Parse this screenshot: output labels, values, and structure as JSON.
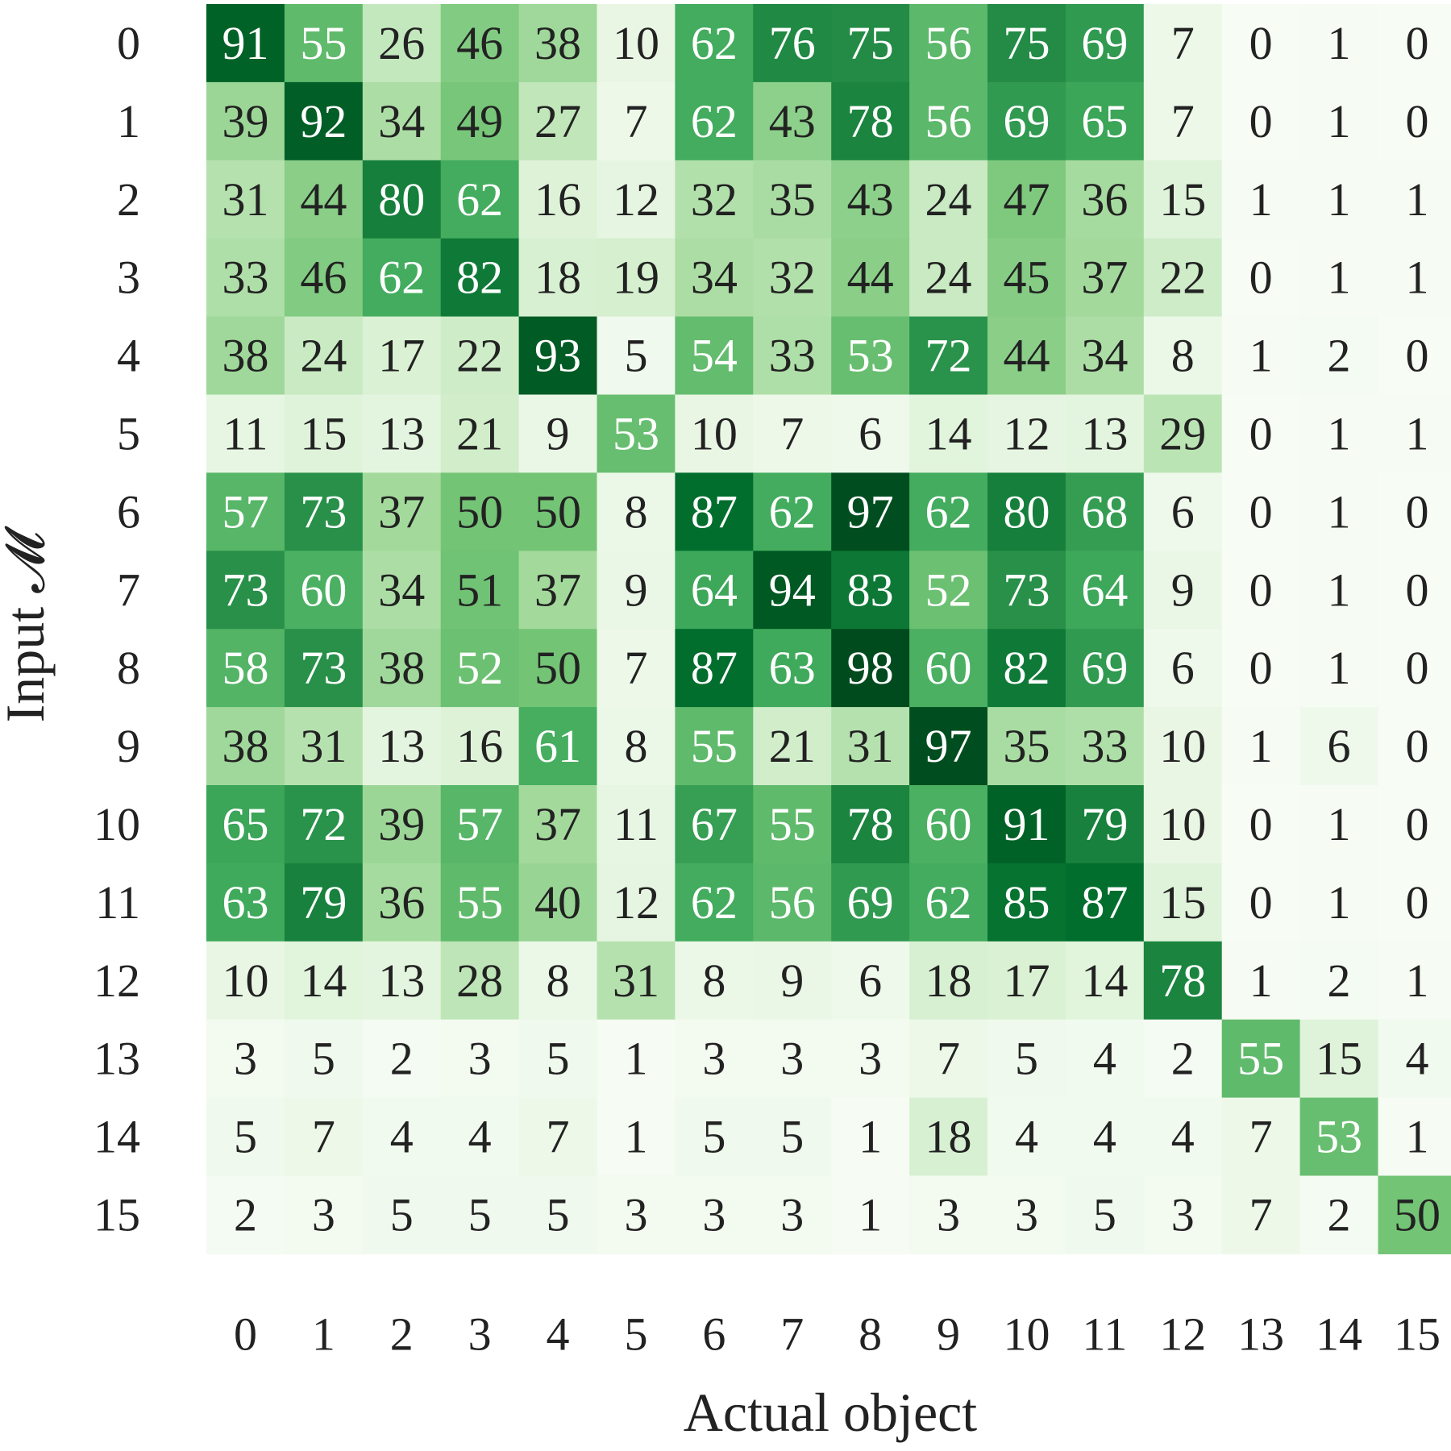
{
  "chart_data": {
    "type": "heatmap",
    "title": "",
    "xlabel": "Actual object",
    "ylabel": "Input 𝓜",
    "x_ticks": [
      "0",
      "1",
      "2",
      "3",
      "4",
      "5",
      "6",
      "7",
      "8",
      "9",
      "10",
      "11",
      "12",
      "13",
      "14",
      "15"
    ],
    "y_ticks": [
      "0",
      "1",
      "2",
      "3",
      "4",
      "5",
      "6",
      "7",
      "8",
      "9",
      "10",
      "11",
      "12",
      "13",
      "14",
      "15"
    ],
    "value_range": [
      0,
      100
    ],
    "colormap": "Greens",
    "colors": {
      "low": "#f7fcf5",
      "high": "#00441b",
      "text_dark": "#222222",
      "text_light": "#ffffff"
    },
    "grid": false,
    "values": [
      [
        91,
        55,
        26,
        46,
        38,
        10,
        62,
        76,
        75,
        56,
        75,
        69,
        7,
        0,
        1,
        0
      ],
      [
        39,
        92,
        34,
        49,
        27,
        7,
        62,
        43,
        78,
        56,
        69,
        65,
        7,
        0,
        1,
        0
      ],
      [
        31,
        44,
        80,
        62,
        16,
        12,
        32,
        35,
        43,
        24,
        47,
        36,
        15,
        1,
        1,
        1
      ],
      [
        33,
        46,
        62,
        82,
        18,
        19,
        34,
        32,
        44,
        24,
        45,
        37,
        22,
        0,
        1,
        1
      ],
      [
        38,
        24,
        17,
        22,
        93,
        5,
        54,
        33,
        53,
        72,
        44,
        34,
        8,
        1,
        2,
        0
      ],
      [
        11,
        15,
        13,
        21,
        9,
        53,
        10,
        7,
        6,
        14,
        12,
        13,
        29,
        0,
        1,
        1
      ],
      [
        57,
        73,
        37,
        50,
        50,
        8,
        87,
        62,
        97,
        62,
        80,
        68,
        6,
        0,
        1,
        0
      ],
      [
        73,
        60,
        34,
        51,
        37,
        9,
        64,
        94,
        83,
        52,
        73,
        64,
        9,
        0,
        1,
        0
      ],
      [
        58,
        73,
        38,
        52,
        50,
        7,
        87,
        63,
        98,
        60,
        82,
        69,
        6,
        0,
        1,
        0
      ],
      [
        38,
        31,
        13,
        16,
        61,
        8,
        55,
        21,
        31,
        97,
        35,
        33,
        10,
        1,
        6,
        0
      ],
      [
        65,
        72,
        39,
        57,
        37,
        11,
        67,
        55,
        78,
        60,
        91,
        79,
        10,
        0,
        1,
        0
      ],
      [
        63,
        79,
        36,
        55,
        40,
        12,
        62,
        56,
        69,
        62,
        85,
        87,
        15,
        0,
        1,
        0
      ],
      [
        10,
        14,
        13,
        28,
        8,
        31,
        8,
        9,
        6,
        18,
        17,
        14,
        78,
        1,
        2,
        1
      ],
      [
        3,
        5,
        2,
        3,
        5,
        1,
        3,
        3,
        3,
        7,
        5,
        4,
        2,
        55,
        15,
        4
      ],
      [
        5,
        7,
        4,
        4,
        7,
        1,
        5,
        5,
        1,
        18,
        4,
        4,
        4,
        7,
        53,
        1
      ],
      [
        2,
        3,
        5,
        5,
        5,
        3,
        3,
        3,
        1,
        3,
        3,
        5,
        3,
        7,
        2,
        50
      ]
    ]
  }
}
